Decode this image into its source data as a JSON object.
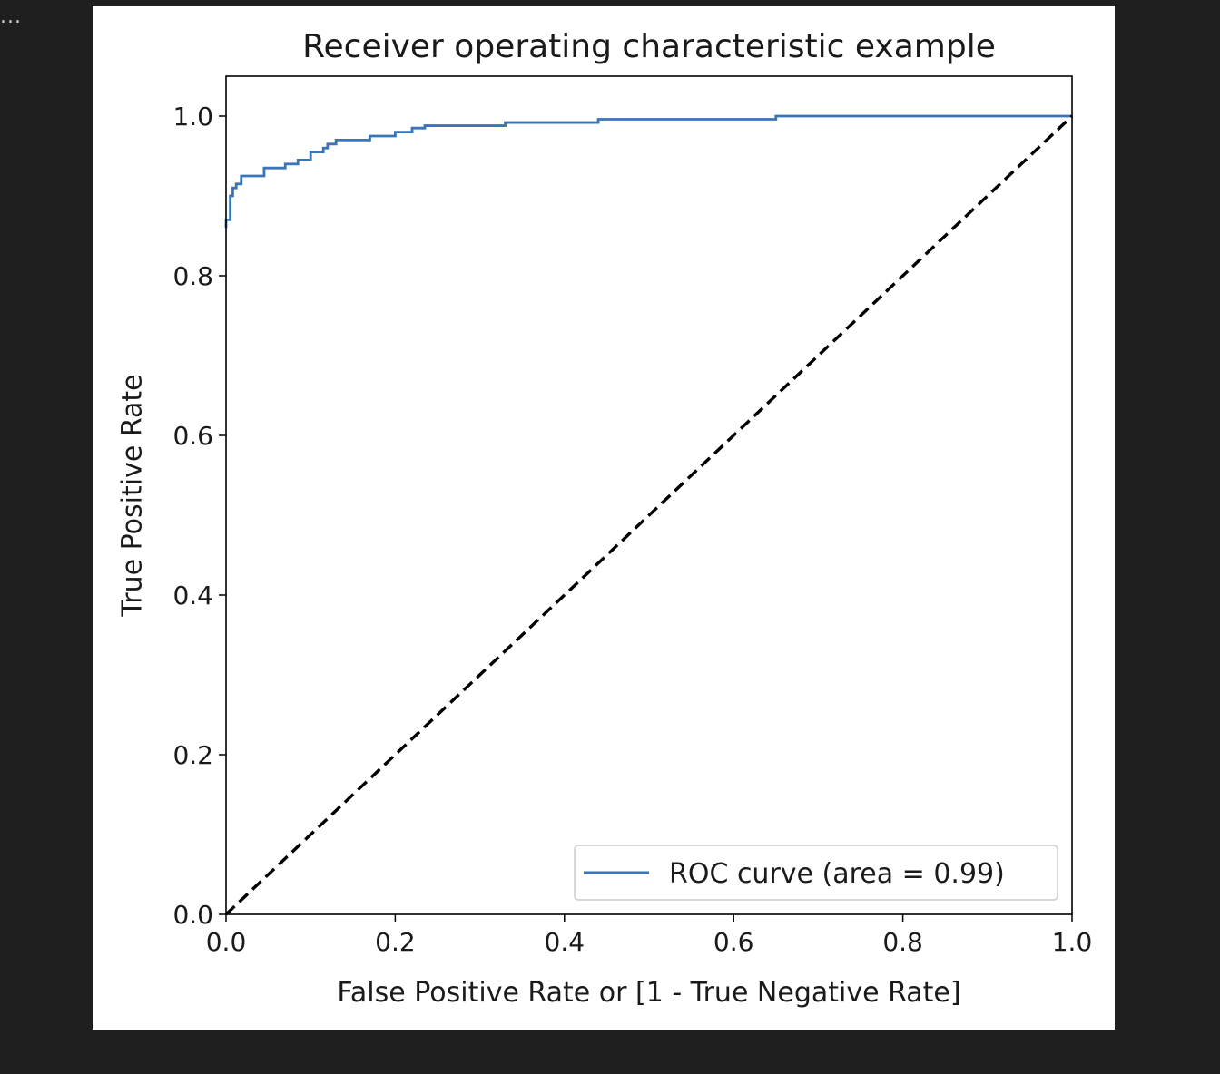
{
  "cell_output_indicator": "...",
  "chart_data": {
    "type": "line",
    "title": "Receiver operating characteristic example",
    "xlabel": "False Positive Rate or [1 - True Negative Rate]",
    "ylabel": "True Positive Rate",
    "xlim": [
      0.0,
      1.0
    ],
    "ylim": [
      0.0,
      1.05
    ],
    "xticks": [
      "0.0",
      "0.2",
      "0.4",
      "0.6",
      "0.8",
      "1.0"
    ],
    "yticks": [
      "0.0",
      "0.2",
      "0.4",
      "0.6",
      "0.8",
      "1.0"
    ],
    "legend_position": "lower-right",
    "grid": false,
    "series": [
      {
        "name": "ROC curve (area = 0.99)",
        "color": "#3a75b8",
        "style": "solid",
        "x": [
          0.0,
          0.0,
          0.005,
          0.005,
          0.008,
          0.008,
          0.012,
          0.012,
          0.018,
          0.018,
          0.045,
          0.045,
          0.07,
          0.07,
          0.085,
          0.085,
          0.1,
          0.1,
          0.115,
          0.115,
          0.12,
          0.12,
          0.13,
          0.13,
          0.17,
          0.17,
          0.2,
          0.2,
          0.22,
          0.22,
          0.235,
          0.235,
          0.33,
          0.33,
          0.44,
          0.44,
          0.65,
          0.65,
          1.0
        ],
        "y": [
          0.86,
          0.87,
          0.87,
          0.9,
          0.9,
          0.91,
          0.91,
          0.915,
          0.915,
          0.925,
          0.925,
          0.935,
          0.935,
          0.94,
          0.94,
          0.945,
          0.945,
          0.955,
          0.955,
          0.96,
          0.96,
          0.965,
          0.965,
          0.97,
          0.97,
          0.975,
          0.975,
          0.98,
          0.98,
          0.985,
          0.985,
          0.988,
          0.988,
          0.992,
          0.992,
          0.996,
          0.996,
          1.0,
          1.0
        ]
      },
      {
        "name": "",
        "color": "#000000",
        "style": "dashed",
        "x": [
          0.0,
          1.0
        ],
        "y": [
          0.0,
          1.0
        ]
      }
    ]
  }
}
